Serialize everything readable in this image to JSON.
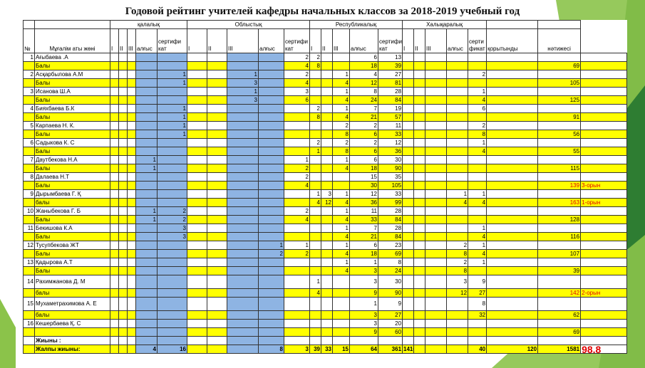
{
  "title": "Годовой рейтинг учителей кафедры начальных  классов за 2018-2019 учебный год",
  "headers": {
    "no": "№",
    "name": "Мұғалім аты жөні",
    "city": "қалалық",
    "region": "Облыстық",
    "republic": "Республикалық",
    "international": "Халықаралық",
    "places": [
      "I",
      "II",
      "III",
      "алғыс"
    ],
    "cert_city": "сертифи кат",
    "cert_region": "сертифи кат",
    "cert_rep": "сертифи кат",
    "cert_int": "серти фикат",
    "total": "қорытынды",
    "result": "нәтижесі"
  },
  "rows": [
    {
      "no": "1",
      "name": "Ағыбаева  .А",
      "tall": false,
      "cells": [
        "",
        "",
        "",
        "",
        "",
        "",
        "",
        "",
        "",
        "2",
        "2",
        "",
        "",
        "6",
        "13",
        "",
        "",
        "",
        "",
        "",
        "",
        "",
        ""
      ]
    },
    {
      "no": "",
      "name": "Балы",
      "tall": false,
      "cells": [
        "",
        "",
        "",
        "",
        "",
        "",
        "",
        "",
        "",
        "4",
        "8",
        "",
        "",
        "18",
        "39",
        "",
        "",
        "",
        "",
        "",
        "",
        "69",
        ""
      ]
    },
    {
      "no": "2",
      "name": "Асқарбылова А.М",
      "tall": false,
      "cells": [
        "",
        "",
        "",
        "",
        "1",
        "",
        "",
        "1",
        "",
        "2",
        "",
        "",
        "1",
        "4",
        "27",
        "",
        "",
        "",
        "",
        "2",
        "",
        "",
        ""
      ]
    },
    {
      "no": "",
      "name": "Балы",
      "tall": false,
      "cells": [
        "",
        "",
        "",
        "",
        "1",
        "",
        "",
        "3",
        "",
        "4",
        "",
        "",
        "4",
        "12",
        "81",
        "",
        "",
        "",
        "",
        "",
        "",
        "105",
        ""
      ]
    },
    {
      "no": "3",
      "name": "Исанова Ш.А",
      "tall": false,
      "cells": [
        "",
        "",
        "",
        "",
        "",
        "",
        "",
        "1",
        "",
        "3",
        "",
        "",
        "1",
        "8",
        "28",
        "",
        "",
        "",
        "",
        "1",
        "",
        "",
        ""
      ]
    },
    {
      "no": "",
      "name": "Балы",
      "tall": false,
      "cells": [
        "",
        "",
        "",
        "",
        "",
        "",
        "",
        "3",
        "",
        "6",
        "",
        "",
        "4",
        "24",
        "84",
        "",
        "",
        "",
        "",
        "4",
        "",
        "125",
        ""
      ]
    },
    {
      "no": "4",
      "name": "Бияхбаева Б.К",
      "tall": false,
      "cells": [
        "",
        "",
        "",
        "",
        "1",
        "",
        "",
        "",
        "",
        "",
        "2",
        "",
        "1",
        "7",
        "19",
        "",
        "",
        "",
        "",
        "6",
        "",
        "",
        ""
      ]
    },
    {
      "no": "",
      "name": "Балы",
      "tall": false,
      "cells": [
        "",
        "",
        "",
        "",
        "1",
        "",
        "",
        "",
        "",
        "",
        "8",
        "",
        "4",
        "21",
        "57",
        "",
        "",
        "",
        "",
        "",
        "",
        "91",
        ""
      ]
    },
    {
      "no": "5",
      "name": "Карпаева  Н. К.",
      "tall": false,
      "cells": [
        "",
        "",
        "",
        "",
        "1",
        "",
        "",
        "",
        "",
        "",
        "",
        "",
        "2",
        "2",
        "11",
        "",
        "",
        "",
        "",
        "2",
        "",
        "",
        ""
      ]
    },
    {
      "no": "",
      "name": "Балы",
      "tall": false,
      "cells": [
        "",
        "",
        "",
        "",
        "1",
        "",
        "",
        "",
        "",
        "",
        "",
        "",
        "8",
        "6",
        "33",
        "",
        "",
        "",
        "",
        "8",
        "",
        "56",
        ""
      ]
    },
    {
      "no": "6",
      "name": "Садыкова К. С",
      "tall": false,
      "cells": [
        "",
        "",
        "",
        "",
        "",
        "",
        "",
        "",
        "",
        "",
        "2",
        "",
        "2",
        "2",
        "12",
        "",
        "",
        "",
        "",
        "1",
        "",
        "",
        ""
      ]
    },
    {
      "no": "",
      "name": "Балы",
      "tall": false,
      "cells": [
        "",
        "",
        "",
        "",
        "",
        "",
        "",
        "",
        "",
        "",
        "1",
        "",
        "8",
        "6",
        "36",
        "",
        "",
        "",
        "",
        "4",
        "",
        "55",
        ""
      ]
    },
    {
      "no": "7",
      "name": "Даутбекова Н.А",
      "tall": false,
      "cells": [
        "",
        "",
        "",
        "1",
        "",
        "",
        "",
        "",
        "",
        "1",
        "",
        "",
        "1",
        "6",
        "30",
        "",
        "",
        "",
        "",
        "",
        "",
        "",
        ""
      ]
    },
    {
      "no": "",
      "name": "Балы",
      "tall": false,
      "cells": [
        "",
        "",
        "",
        "1",
        "",
        "",
        "",
        "",
        "",
        "2",
        "",
        "",
        "4",
        "18",
        "90",
        "",
        "",
        "",
        "",
        "",
        "",
        "115",
        ""
      ]
    },
    {
      "no": "8",
      "name": "Далаева Н.Т",
      "tall": false,
      "cells": [
        "",
        "",
        "",
        "",
        "",
        "",
        "",
        "",
        "",
        "2",
        "",
        "",
        "",
        "15",
        "35",
        "",
        "",
        "",
        "",
        "",
        "",
        "",
        ""
      ]
    },
    {
      "no": "",
      "name": "Балы",
      "tall": false,
      "cells": [
        "",
        "",
        "",
        "",
        "",
        "",
        "",
        "",
        "",
        "4",
        "",
        "",
        "",
        "30",
        "105",
        "",
        "",
        "",
        "",
        "",
        "",
        "139",
        "3-орын"
      ]
    },
    {
      "no": "9",
      "name": "Дырымбаева Г. Қ",
      "tall": false,
      "cells": [
        "",
        "",
        "",
        "",
        "",
        "",
        "",
        "",
        "",
        "",
        "1",
        "3",
        "1",
        "12",
        "33",
        "",
        "",
        "",
        "1",
        "1",
        "",
        "",
        ""
      ]
    },
    {
      "no": "",
      "name": "балы",
      "tall": false,
      "cells": [
        "",
        "",
        "",
        "",
        "",
        "",
        "",
        "",
        "",
        "",
        "4",
        "12",
        "4",
        "36",
        "99",
        "",
        "",
        "",
        "4",
        "4",
        "",
        "163",
        "1-орын"
      ]
    },
    {
      "no": "10",
      "name": "Жаныбекова Г. Б",
      "tall": false,
      "cells": [
        "",
        "",
        "",
        "1",
        "2",
        "",
        "",
        "",
        "",
        "2",
        "",
        "",
        "1",
        "11",
        "28",
        "",
        "",
        "",
        "",
        "",
        "",
        "",
        ""
      ]
    },
    {
      "no": "",
      "name": "Балы",
      "tall": false,
      "cells": [
        "",
        "",
        "",
        "1",
        "2",
        "",
        "",
        "",
        "",
        "4",
        "",
        "",
        "4",
        "33",
        "84",
        "",
        "",
        "",
        "",
        "",
        "",
        "128",
        ""
      ]
    },
    {
      "no": "11",
      "name": "Бекишова К.А",
      "tall": false,
      "cells": [
        "",
        "",
        "",
        "",
        "3",
        "",
        "",
        "",
        "",
        "",
        "",
        "",
        "1",
        "7",
        "28",
        "",
        "",
        "",
        "",
        "1",
        "",
        "",
        ""
      ]
    },
    {
      "no": "",
      "name": "Балы",
      "tall": false,
      "cells": [
        "",
        "",
        "",
        "",
        "3",
        "",
        "",
        "",
        "",
        "",
        "",
        "",
        "4",
        "21",
        "84",
        "",
        "",
        "",
        "",
        "4",
        "",
        "116",
        ""
      ]
    },
    {
      "no": "12",
      "name": "Тусупбекова ЖТ",
      "tall": false,
      "cells": [
        "",
        "",
        "",
        "",
        "",
        "",
        "",
        "",
        "1",
        "1",
        "",
        "",
        "1",
        "6",
        "23",
        "",
        "",
        "",
        "2",
        "1",
        "",
        "",
        ""
      ]
    },
    {
      "no": "",
      "name": "Балы",
      "tall": false,
      "cells": [
        "",
        "",
        "",
        "",
        "",
        "",
        "",
        "",
        "2",
        "2",
        "",
        "",
        "4",
        "18",
        "69",
        "",
        "",
        "",
        "8",
        "4",
        "",
        "107",
        ""
      ]
    },
    {
      "no": "13",
      "name": "Қадырова А.Т",
      "tall": false,
      "cells": [
        "",
        "",
        "",
        "",
        "",
        "",
        "",
        "",
        "",
        "",
        "",
        "",
        "1",
        "1",
        "8",
        "",
        "",
        "",
        "2",
        "1",
        "",
        "",
        ""
      ]
    },
    {
      "no": "",
      "name": "Балы",
      "tall": false,
      "cells": [
        "",
        "",
        "",
        "",
        "",
        "",
        "",
        "",
        "",
        "",
        "",
        "",
        "4",
        "3",
        "24",
        "",
        "",
        "",
        "8",
        "",
        "",
        "39",
        ""
      ]
    },
    {
      "no": "14",
      "name": "Рахимжанова  Д. М",
      "tall": true,
      "cells": [
        "",
        "",
        "",
        "",
        "",
        "",
        "",
        "",
        "",
        "",
        "1",
        "",
        "",
        "3",
        "30",
        "",
        "",
        "",
        "3",
        "9",
        "",
        "",
        ""
      ]
    },
    {
      "no": "",
      "name": "балы",
      "tall": false,
      "cells": [
        "",
        "",
        "",
        "",
        "",
        "",
        "",
        "",
        "",
        "",
        "4",
        "",
        "",
        "9",
        "90",
        "",
        "",
        "",
        "12",
        "27",
        "",
        "142",
        "2-орын"
      ]
    },
    {
      "no": "15",
      "name": "Мухаметрахимова  А. Е",
      "tall": true,
      "cells": [
        "",
        "",
        "",
        "",
        "",
        "",
        "",
        "",
        "",
        "",
        "",
        "",
        "",
        "1",
        "9",
        "",
        "",
        "",
        "",
        "8",
        "",
        "",
        ""
      ]
    },
    {
      "no": "",
      "name": "балы",
      "tall": false,
      "cells": [
        "",
        "",
        "",
        "",
        "",
        "",
        "",
        "",
        "",
        "",
        "",
        "",
        "",
        "3",
        "27",
        "",
        "",
        "",
        "",
        "32",
        "",
        "62",
        ""
      ]
    },
    {
      "no": "16",
      "name": "Кешербаева Қ. С",
      "tall": false,
      "cells": [
        "",
        "",
        "",
        "",
        "",
        "",
        "",
        "",
        "",
        "",
        "",
        "",
        "",
        "3",
        "20",
        "",
        "",
        "",
        "",
        "",
        "",
        "",
        ""
      ]
    },
    {
      "no": "",
      "name": "",
      "tall": false,
      "cells": [
        "",
        "",
        "",
        "",
        "",
        "",
        "",
        "",
        "",
        "",
        "",
        "",
        "",
        "9",
        "60",
        "",
        "",
        "",
        "",
        "",
        "",
        "69",
        ""
      ]
    },
    {
      "no": "",
      "name": "Жиыны :",
      "tall": false,
      "cells": [
        "",
        "",
        "",
        "",
        "",
        "",
        "",
        "",
        "",
        "",
        "",
        "",
        "",
        "",
        "",
        "",
        "",
        "",
        "",
        "",
        "",
        "",
        ""
      ]
    }
  ],
  "total_row": {
    "name": "Жалпы жиыны:",
    "cells": [
      "",
      "",
      "",
      "4",
      "16",
      "",
      "",
      "",
      "8",
      "3",
      "39",
      "33",
      "15",
      "64",
      "361",
      "1416",
      "",
      "",
      "",
      "40",
      "120",
      "1581"
    ],
    "average": "98,8"
  },
  "colors": {
    "yellow": "#ffff00",
    "blue": "#8eb4e3",
    "green": "#2e7d32",
    "red": "#e00000",
    "light_green": "#8bc34a"
  }
}
